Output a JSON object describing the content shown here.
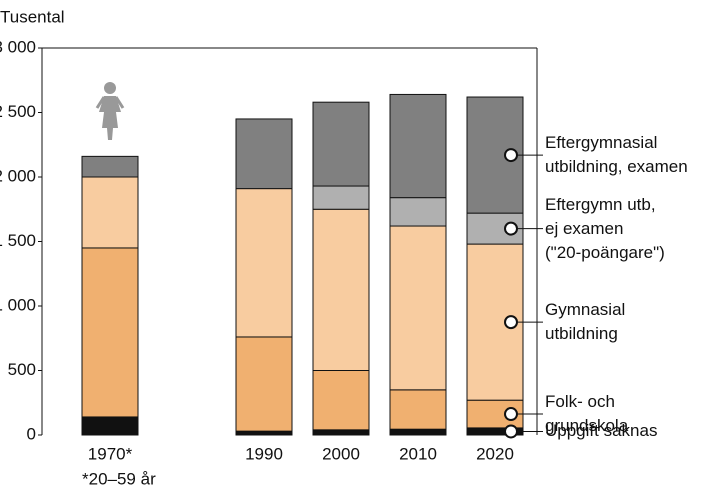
{
  "chart_data": {
    "type": "stacked-bar",
    "y_axis_label": "Tusental",
    "footnote": "*20–59 år",
    "categories": [
      "1970*",
      null,
      "1990",
      "2000",
      "2010",
      "2020"
    ],
    "series": [
      {
        "name": "Uppgift saknas",
        "color": "#111111",
        "values": [
          140,
          null,
          30,
          40,
          45,
          55
        ]
      },
      {
        "name": "Folk- och\ngrundskola",
        "color": "#f0b070",
        "values": [
          1310,
          null,
          730,
          460,
          305,
          215
        ]
      },
      {
        "name": "Gymnasial\nutbildning",
        "color": "#f8cca0",
        "values": [
          550,
          null,
          1150,
          1250,
          1270,
          1210
        ]
      },
      {
        "name": "Eftergymn utb,\nej examen\n(\"20-poängare\")",
        "color": "#b0b0b0",
        "values": [
          null,
          null,
          null,
          180,
          220,
          240
        ]
      },
      {
        "name": "Eftergymnasial\nutbildning, examen",
        "color": "#808080",
        "values": [
          160,
          null,
          540,
          650,
          800,
          900
        ]
      }
    ],
    "ylim": [
      0,
      3000
    ],
    "yticks": [
      0,
      {
        "value": 500,
        "label": "500"
      },
      {
        "value": 1000,
        "label": "1 000"
      },
      {
        "value": 1500,
        "label": "1 500"
      },
      {
        "value": 2000,
        "label": "2 000"
      },
      {
        "value": 2500,
        "label": "2 500"
      },
      {
        "value": 3000,
        "label": "3 000"
      }
    ]
  }
}
